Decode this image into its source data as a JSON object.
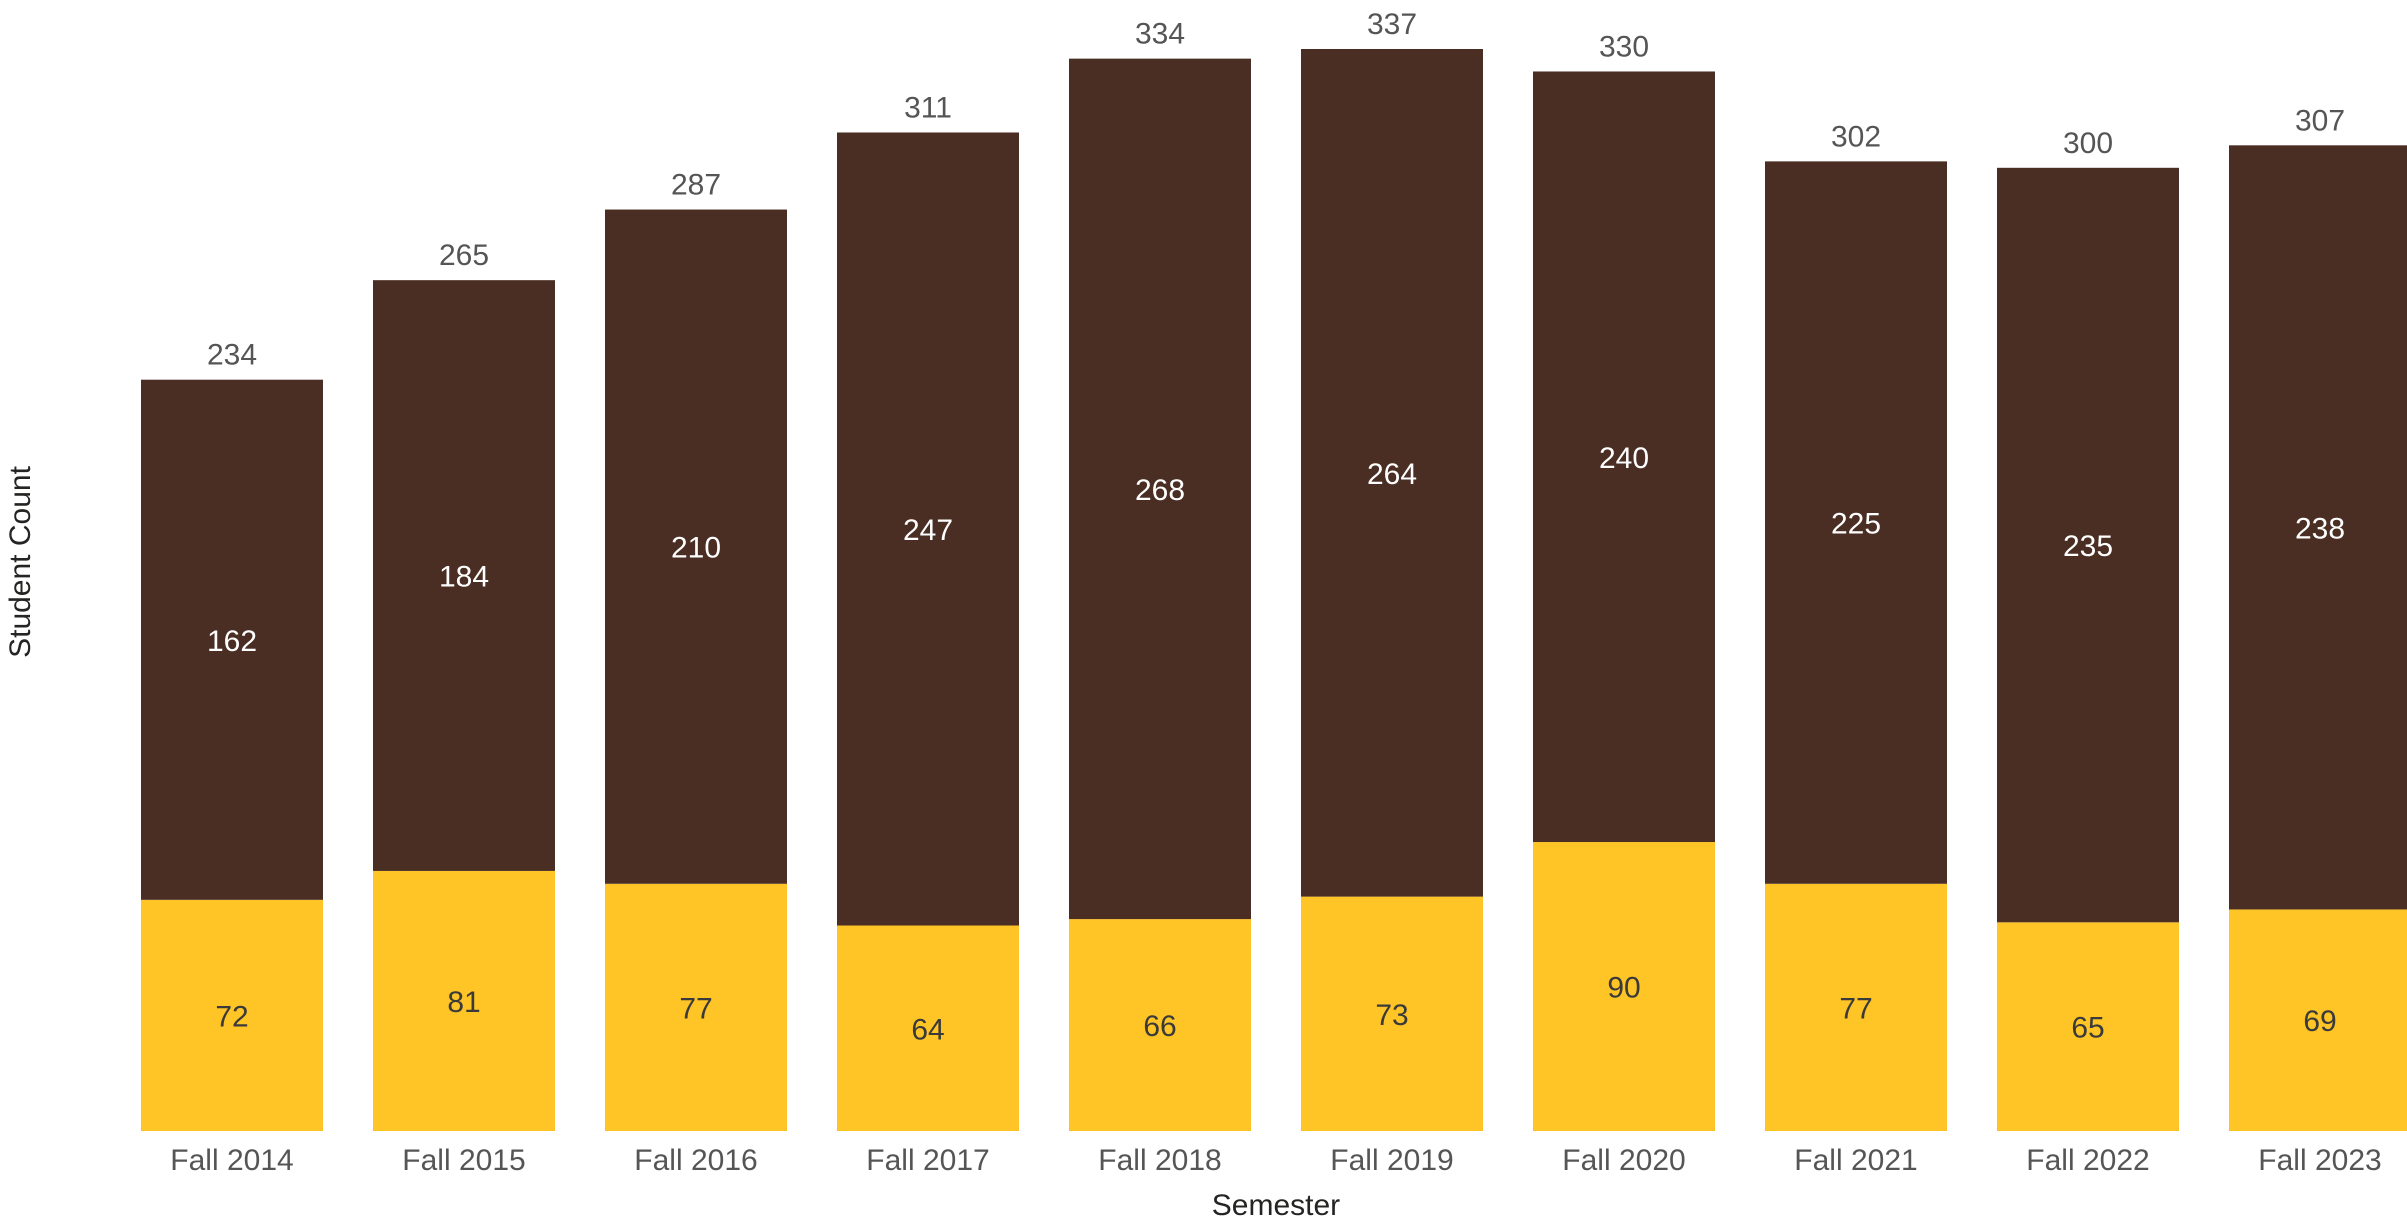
{
  "chart_data": {
    "type": "bar",
    "stacked": true,
    "categories": [
      "Fall 2014",
      "Fall 2015",
      "Fall 2016",
      "Fall 2017",
      "Fall 2018",
      "Fall 2019",
      "Fall 2020",
      "Fall 2021",
      "Fall 2022",
      "Fall 2023"
    ],
    "series": [
      {
        "color": "#FFC425",
        "values": [
          72,
          81,
          77,
          64,
          66,
          73,
          90,
          77,
          65,
          69
        ]
      },
      {
        "color": "#4A2E24",
        "values": [
          162,
          184,
          210,
          247,
          268,
          264,
          240,
          225,
          235,
          238
        ]
      }
    ],
    "totals": [
      234,
      265,
      287,
      311,
      334,
      337,
      330,
      302,
      300,
      307
    ],
    "xlabel": "Semester",
    "ylabel": "Student Count",
    "ylim": [
      0,
      337
    ],
    "grid": false,
    "legend": "none",
    "data_labels": true
  }
}
